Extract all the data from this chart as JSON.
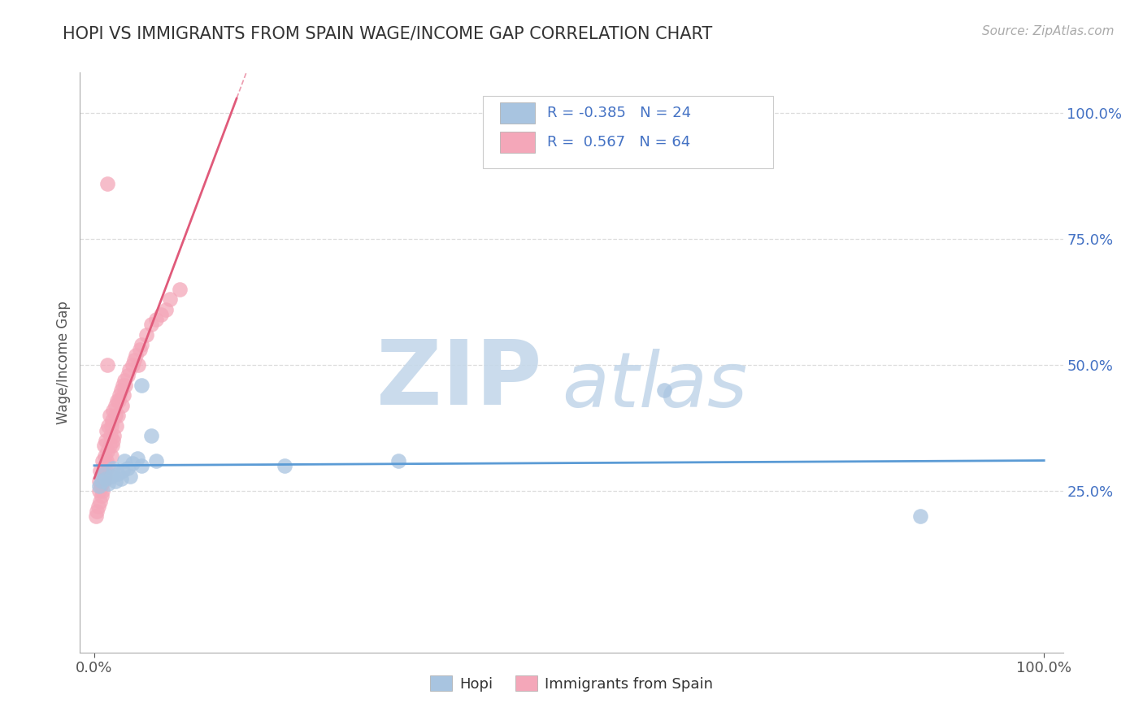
{
  "title": "HOPI VS IMMIGRANTS FROM SPAIN WAGE/INCOME GAP CORRELATION CHART",
  "source_text": "Source: ZipAtlas.com",
  "ylabel": "Wage/Income Gap",
  "hopi_R": -0.385,
  "hopi_N": 24,
  "spain_R": 0.567,
  "spain_N": 64,
  "hopi_color": "#a8c4e0",
  "spain_color": "#f4a7b9",
  "trend_hopi_color": "#5b9bd5",
  "trend_spain_color": "#e05a7a",
  "watermark_zip_color": "#c5d8ea",
  "watermark_atlas_color": "#c5d8ea",
  "background_color": "#ffffff",
  "title_color": "#333333",
  "source_color": "#aaaaaa",
  "axis_text_color": "#4472c4",
  "legend_text_color": "#4472c4",
  "ytick_label_color": "#4472c4",
  "grid_color": "#dddddd",
  "hopi_x": [
    0.005,
    0.008,
    0.01,
    0.012,
    0.015,
    0.018,
    0.02,
    0.022,
    0.025,
    0.028,
    0.03,
    0.032,
    0.035,
    0.038,
    0.04,
    0.045,
    0.05,
    0.05,
    0.06,
    0.065,
    0.2,
    0.32,
    0.6,
    0.87
  ],
  "hopi_y": [
    0.26,
    0.27,
    0.285,
    0.275,
    0.265,
    0.28,
    0.295,
    0.27,
    0.285,
    0.275,
    0.29,
    0.31,
    0.295,
    0.28,
    0.305,
    0.315,
    0.3,
    0.46,
    0.36,
    0.31,
    0.3,
    0.31,
    0.45,
    0.2
  ],
  "spain_x": [
    0.002,
    0.003,
    0.004,
    0.005,
    0.005,
    0.006,
    0.006,
    0.007,
    0.008,
    0.008,
    0.009,
    0.009,
    0.01,
    0.01,
    0.01,
    0.011,
    0.011,
    0.012,
    0.012,
    0.013,
    0.013,
    0.014,
    0.014,
    0.015,
    0.015,
    0.016,
    0.016,
    0.017,
    0.018,
    0.018,
    0.019,
    0.019,
    0.02,
    0.02,
    0.021,
    0.022,
    0.022,
    0.023,
    0.024,
    0.025,
    0.026,
    0.027,
    0.028,
    0.029,
    0.03,
    0.031,
    0.032,
    0.033,
    0.035,
    0.037,
    0.04,
    0.042,
    0.044,
    0.046,
    0.048,
    0.05,
    0.055,
    0.06,
    0.065,
    0.07,
    0.075,
    0.08,
    0.09,
    0.014
  ],
  "spain_y": [
    0.2,
    0.21,
    0.22,
    0.25,
    0.27,
    0.23,
    0.29,
    0.26,
    0.24,
    0.28,
    0.31,
    0.25,
    0.27,
    0.3,
    0.34,
    0.28,
    0.32,
    0.29,
    0.35,
    0.31,
    0.37,
    0.86,
    0.33,
    0.38,
    0.3,
    0.34,
    0.4,
    0.36,
    0.32,
    0.38,
    0.34,
    0.39,
    0.35,
    0.41,
    0.36,
    0.4,
    0.42,
    0.38,
    0.43,
    0.4,
    0.43,
    0.44,
    0.45,
    0.42,
    0.46,
    0.44,
    0.47,
    0.46,
    0.48,
    0.49,
    0.5,
    0.51,
    0.52,
    0.5,
    0.53,
    0.54,
    0.56,
    0.58,
    0.59,
    0.6,
    0.61,
    0.63,
    0.65,
    0.5
  ],
  "xlim": [
    0.0,
    1.0
  ],
  "ylim": [
    0.0,
    1.05
  ],
  "yticks": [
    0.25,
    0.5,
    0.75,
    1.0
  ]
}
